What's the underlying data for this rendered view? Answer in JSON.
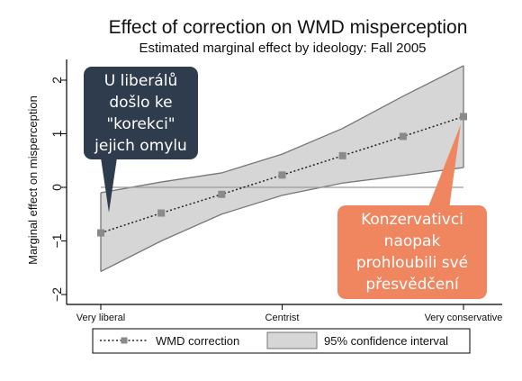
{
  "chart_data": {
    "type": "line",
    "title": "Effect of correction on WMD misperception",
    "subtitle": "Estimated marginal effect by ideology: Fall 2005",
    "ylabel": "Marginal effect on misperception",
    "xlabel": "",
    "ylim": [
      -2.2,
      2.4
    ],
    "yticks": [
      -2,
      -1,
      0,
      1,
      2
    ],
    "ytick_labels": [
      "−2",
      "−1",
      "0",
      "1",
      "2"
    ],
    "x": [
      1,
      2,
      3,
      4,
      5,
      6,
      7
    ],
    "x_tick_positions": [
      1,
      4,
      7
    ],
    "x_tick_labels": [
      "Very liberal",
      "Centrist",
      "Very conservative"
    ],
    "grid": false,
    "reference_line_y": 0,
    "series": [
      {
        "name": "WMD correction",
        "values": [
          -0.85,
          -0.48,
          -0.13,
          0.23,
          0.59,
          0.95,
          1.32
        ],
        "style": "dotted line with square markers",
        "color": "#8a8a8a"
      }
    ],
    "confidence_band": {
      "name": "95% confidence interval",
      "lower": [
        -1.57,
        -1.0,
        -0.5,
        -0.15,
        0.08,
        0.22,
        0.37
      ],
      "upper": [
        -0.1,
        0.1,
        0.27,
        0.62,
        1.1,
        1.7,
        2.27
      ],
      "fill": "#d6d6d6",
      "edge": "#777777"
    },
    "legend_position": "bottom"
  },
  "annotations": {
    "liberal": {
      "lines": [
        "U liberálů",
        "došlo ke",
        "\"korekci\"",
        "jejich omylu"
      ],
      "color": "#2f3c4d"
    },
    "conservative": {
      "lines": [
        "Konzervativci",
        "naopak",
        "prohloubili své",
        "přesvědčení"
      ],
      "color": "#ef865f"
    }
  }
}
